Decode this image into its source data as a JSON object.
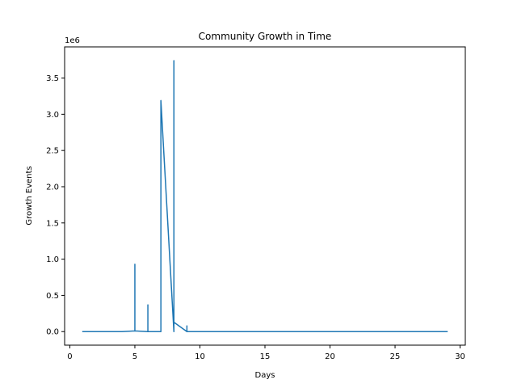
{
  "chart_data": {
    "type": "line",
    "title": "Community Growth in Time",
    "xlabel": "Days",
    "ylabel": "Growth Events",
    "offset_label": "1e6",
    "xlim": [
      -0.4,
      30.4
    ],
    "ylim": [
      -0.187,
      3.93
    ],
    "y_scale_factor": 1000000,
    "x_ticks": [
      0,
      5,
      10,
      15,
      20,
      25,
      30
    ],
    "y_ticks": [
      0.0,
      0.5,
      1.0,
      1.5,
      2.0,
      2.5,
      3.0,
      3.5
    ],
    "x_tick_labels": [
      "0",
      "5",
      "10",
      "15",
      "20",
      "25",
      "30"
    ],
    "y_tick_labels": [
      "0.0",
      "0.5",
      "1.0",
      "1.5",
      "2.0",
      "2.5",
      "3.0",
      "3.5"
    ],
    "grid": false,
    "series": [
      {
        "color": "#1f77b4",
        "x": [
          1,
          2,
          3,
          4,
          5,
          5,
          5,
          6,
          6,
          6,
          7,
          7,
          7,
          8,
          8,
          8,
          8,
          8,
          9,
          9,
          9,
          10,
          11,
          12,
          13,
          14,
          15,
          16,
          17,
          18,
          19,
          20,
          21,
          22,
          23,
          24,
          25,
          26,
          27,
          28,
          29
        ],
        "y": [
          0.0,
          0.0,
          0.0,
          0.0,
          0.01,
          0.93,
          0.01,
          0.0,
          0.37,
          0.0,
          0.0,
          3.19,
          3.19,
          0.0,
          3.74,
          3.74,
          0.0,
          0.13,
          0.0,
          0.08,
          0.0,
          0.0,
          0.0,
          0.0,
          0.0,
          0.0,
          0.0,
          0.0,
          0.0,
          0.0,
          0.0,
          0.0,
          0.0,
          0.0,
          0.0,
          0.0,
          0.0,
          0.0,
          0.0,
          0.0,
          0.0
        ]
      }
    ]
  }
}
